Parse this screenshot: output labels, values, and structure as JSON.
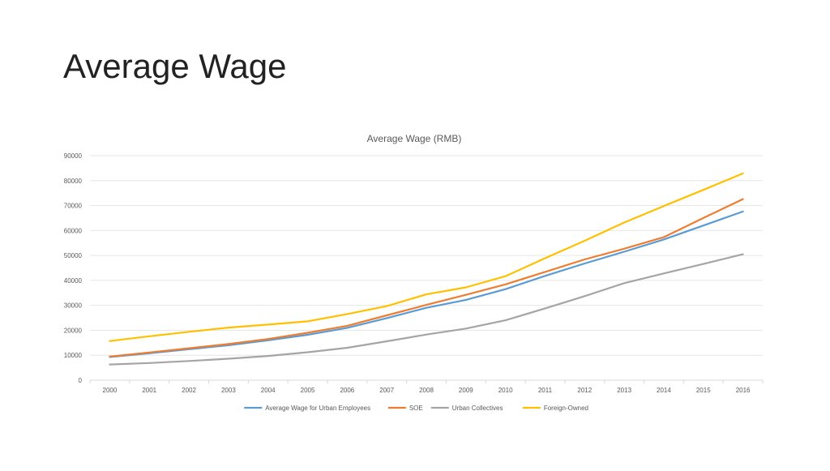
{
  "slide": {
    "title": "Average Wage"
  },
  "chart_data": {
    "type": "line",
    "title": "Average Wage (RMB)",
    "xlabel": "",
    "ylabel": "",
    "ylim": [
      0,
      90000
    ],
    "yticks": [
      0,
      10000,
      20000,
      30000,
      40000,
      50000,
      60000,
      70000,
      80000,
      90000
    ],
    "grid": true,
    "legend_position": "bottom",
    "x": [
      "2000",
      "2001",
      "2002",
      "2003",
      "2004",
      "2005",
      "2006",
      "2007",
      "2008",
      "2009",
      "2010",
      "2011",
      "2012",
      "2013",
      "2014",
      "2015",
      "2016"
    ],
    "series": [
      {
        "name": "Average Wage for Urban Employees",
        "color": "#5B9BD5",
        "values": [
          9300,
          10800,
          12400,
          14000,
          16000,
          18200,
          21000,
          24900,
          29000,
          32200,
          36500,
          41800,
          46800,
          51500,
          56400,
          62000,
          67600
        ]
      },
      {
        "name": "SOE",
        "color": "#ED7D31",
        "values": [
          9500,
          11100,
          12800,
          14500,
          16500,
          19000,
          21800,
          26000,
          30200,
          34200,
          38400,
          43400,
          48400,
          52700,
          57300,
          65000,
          72600
        ]
      },
      {
        "name": "Urban Collectives",
        "color": "#A5A5A5",
        "values": [
          6300,
          6900,
          7700,
          8600,
          9700,
          11200,
          13000,
          15600,
          18300,
          20700,
          24000,
          28800,
          33700,
          38900,
          42800,
          46600,
          50500
        ]
      },
      {
        "name": "Foreign-Owned",
        "color": "#FFC000",
        "values": [
          15700,
          17600,
          19400,
          21100,
          22300,
          23600,
          26500,
          29700,
          34400,
          37200,
          41700,
          48900,
          55900,
          63200,
          69800,
          76300,
          82900
        ]
      }
    ]
  }
}
